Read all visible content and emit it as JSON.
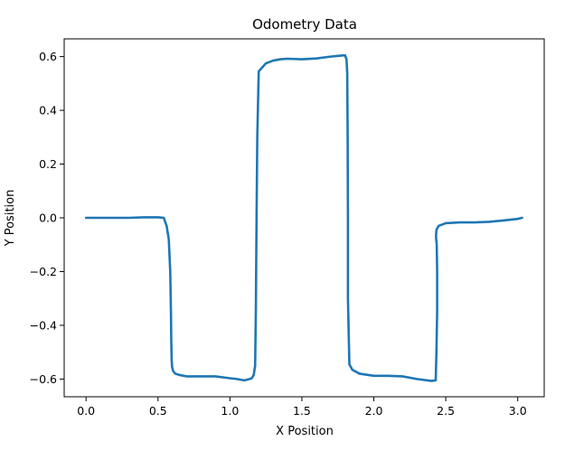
{
  "chart_data": {
    "type": "line",
    "title": "Odometry Data",
    "xlabel": "X Position",
    "ylabel": "Y Position",
    "xlim": [
      -0.152,
      3.184
    ],
    "ylim": [
      -0.666,
      0.666
    ],
    "xticks": [
      0.0,
      0.5,
      1.0,
      1.5,
      2.0,
      2.5,
      3.0
    ],
    "xtick_labels": [
      "0.0",
      "0.5",
      "1.0",
      "1.5",
      "2.0",
      "2.5",
      "3.0"
    ],
    "yticks": [
      -0.6,
      -0.4,
      -0.2,
      0.0,
      0.2,
      0.4,
      0.6
    ],
    "ytick_labels": [
      "−0.6",
      "−0.4",
      "−0.2",
      "0.0",
      "0.2",
      "0.4",
      "0.6"
    ],
    "grid": false,
    "legend": "none",
    "color": "#1f77b4",
    "series": [
      {
        "x": [
          0.0,
          0.1,
          0.2,
          0.3,
          0.4,
          0.5,
          0.54,
          0.56,
          0.575,
          0.585,
          0.59,
          0.592,
          0.595,
          0.598,
          0.605,
          0.62,
          0.65,
          0.7,
          0.8,
          0.9,
          1.0,
          1.05,
          1.1,
          1.15,
          1.165,
          1.175,
          1.18,
          1.185,
          1.19,
          1.2,
          1.225,
          1.25,
          1.3,
          1.35,
          1.4,
          1.5,
          1.6,
          1.7,
          1.76,
          1.8,
          1.81,
          1.815,
          1.818,
          1.82,
          1.82,
          1.83,
          1.85,
          1.9,
          2.0,
          2.1,
          2.2,
          2.3,
          2.4,
          2.43,
          2.435,
          2.44,
          2.44,
          2.437,
          2.432,
          2.435,
          2.45,
          2.5,
          2.6,
          2.7,
          2.8,
          2.9,
          3.0,
          3.03
        ],
        "y": [
          0.0,
          0.0,
          0.0,
          0.0,
          0.002,
          0.002,
          0.0,
          -0.03,
          -0.08,
          -0.2,
          -0.35,
          -0.45,
          -0.53,
          -0.555,
          -0.57,
          -0.58,
          -0.585,
          -0.59,
          -0.59,
          -0.59,
          -0.597,
          -0.6,
          -0.605,
          -0.598,
          -0.585,
          -0.55,
          -0.35,
          0.0,
          0.3,
          0.545,
          0.56,
          0.575,
          0.585,
          0.59,
          0.592,
          0.59,
          0.593,
          0.6,
          0.603,
          0.605,
          0.59,
          0.54,
          0.3,
          0.0,
          -0.3,
          -0.545,
          -0.565,
          -0.58,
          -0.588,
          -0.588,
          -0.59,
          -0.6,
          -0.607,
          -0.605,
          -0.5,
          -0.35,
          -0.2,
          -0.1,
          -0.07,
          -0.045,
          -0.03,
          -0.02,
          -0.017,
          -0.017,
          -0.015,
          -0.01,
          -0.004,
          0.0
        ]
      }
    ]
  }
}
